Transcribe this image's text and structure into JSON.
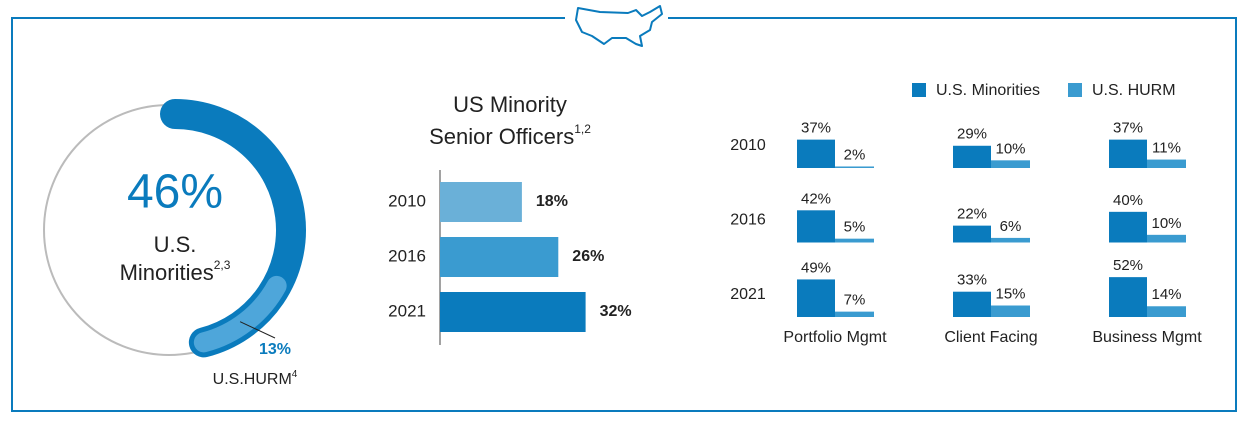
{
  "chart_data": [
    {
      "type": "donut",
      "labels": [
        "U.S. Minorities",
        "U.S.HURM"
      ],
      "label_superscripts": [
        "2,3",
        "4"
      ],
      "values": [
        46,
        13
      ],
      "value_labels": [
        "46%",
        "13%"
      ],
      "colors": [
        "#0a7bbd",
        "#4ea6da"
      ],
      "ylim": [
        0,
        100
      ]
    },
    {
      "type": "hbar",
      "title": [
        "US Minority",
        "Senior Officers"
      ],
      "title_superscript": "1,2",
      "categories": [
        "2010",
        "2016",
        "2021"
      ],
      "values": [
        18,
        26,
        32
      ],
      "value_labels": [
        "18%",
        "26%",
        "32%"
      ],
      "colors": [
        "#6ab0d8",
        "#3a9bd0",
        "#0a7bbd"
      ],
      "xlim": [
        0,
        40
      ]
    },
    {
      "type": "grouped_bar",
      "rows": [
        "2010",
        "2016",
        "2021"
      ],
      "categories": [
        "Portfolio Mgmt",
        "Client Facing",
        "Business Mgmt"
      ],
      "series": [
        {
          "name": "U.S. Minorities",
          "color": "#0a7bbd",
          "values": [
            [
              37,
              42,
              49
            ],
            [
              29,
              22,
              33
            ],
            [
              37,
              40,
              52
            ]
          ],
          "value_labels": [
            [
              "37%",
              "42%",
              "49%"
            ],
            [
              "29%",
              "22%",
              "33%"
            ],
            [
              "37%",
              "40%",
              "52%"
            ]
          ]
        },
        {
          "name": "U.S. HURM",
          "color": "#3a9bd0",
          "values": [
            [
              2,
              5,
              7
            ],
            [
              10,
              6,
              15
            ],
            [
              11,
              10,
              14
            ]
          ],
          "value_labels": [
            [
              "2%",
              "5%",
              "7%"
            ],
            [
              "10%",
              "6%",
              "15%"
            ],
            [
              "11%",
              "10%",
              "14%"
            ]
          ]
        }
      ],
      "ylim": [
        0,
        60
      ]
    }
  ]
}
